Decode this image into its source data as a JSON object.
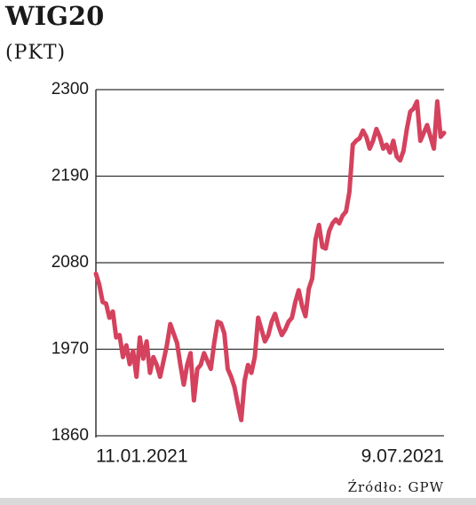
{
  "chart_data": {
    "type": "line",
    "title": "WIG20",
    "subtitle": "(PKT)",
    "source": "Źródło: GPW",
    "categories": [
      "11.01.2021",
      null,
      null,
      null,
      null,
      null,
      null,
      null,
      null,
      null,
      null,
      null,
      null,
      null,
      null,
      null,
      null,
      null,
      null,
      null,
      null,
      null,
      null,
      null,
      null,
      null,
      null,
      null,
      null,
      null,
      null,
      null,
      null,
      null,
      null,
      null,
      null,
      null,
      null,
      null,
      null,
      null,
      null,
      null,
      null,
      null,
      null,
      null,
      null,
      null,
      null,
      null,
      null,
      null,
      null,
      null,
      null,
      null,
      null,
      null,
      null,
      null,
      null,
      null,
      null,
      null,
      null,
      null,
      null,
      null,
      null,
      null,
      null,
      null,
      null,
      null,
      null,
      null,
      null,
      null,
      null,
      null,
      null,
      null,
      null,
      null,
      null,
      null,
      null,
      null,
      null,
      null,
      null,
      null,
      null,
      null,
      null,
      null,
      null,
      null,
      null,
      null,
      null,
      "9.07.2021"
    ],
    "series": [
      {
        "name": "WIG20",
        "color": "#d4425e",
        "values": [
          2066,
          2052,
          2030,
          2028,
          2010,
          2018,
          1985,
          1988,
          1960,
          1975,
          1951,
          1968,
          1935,
          1985,
          1958,
          1980,
          1940,
          1960,
          1950,
          1935,
          1955,
          1975,
          2002,
          1990,
          1978,
          1950,
          1925,
          1950,
          1965,
          1905,
          1945,
          1950,
          1965,
          1955,
          1945,
          1978,
          2005,
          2003,
          1990,
          1945,
          1935,
          1922,
          1900,
          1880,
          1930,
          1950,
          1940,
          1960,
          2010,
          1995,
          1980,
          1988,
          2005,
          2015,
          2000,
          1988,
          1995,
          2005,
          2010,
          2030,
          2045,
          2025,
          2012,
          2047,
          2060,
          2110,
          2128,
          2100,
          2098,
          2120,
          2130,
          2135,
          2130,
          2140,
          2145,
          2170,
          2230,
          2235,
          2238,
          2248,
          2240,
          2225,
          2235,
          2250,
          2240,
          2225,
          2230,
          2220,
          2235,
          2215,
          2210,
          2222,
          2250,
          2272,
          2276,
          2285,
          2235,
          2245,
          2255,
          2240,
          2225,
          2285,
          2240,
          2245
        ]
      }
    ],
    "ylim": [
      1860,
      2300
    ],
    "yticks": [
      1860,
      1970,
      2080,
      2190,
      2300
    ],
    "grid": true
  }
}
